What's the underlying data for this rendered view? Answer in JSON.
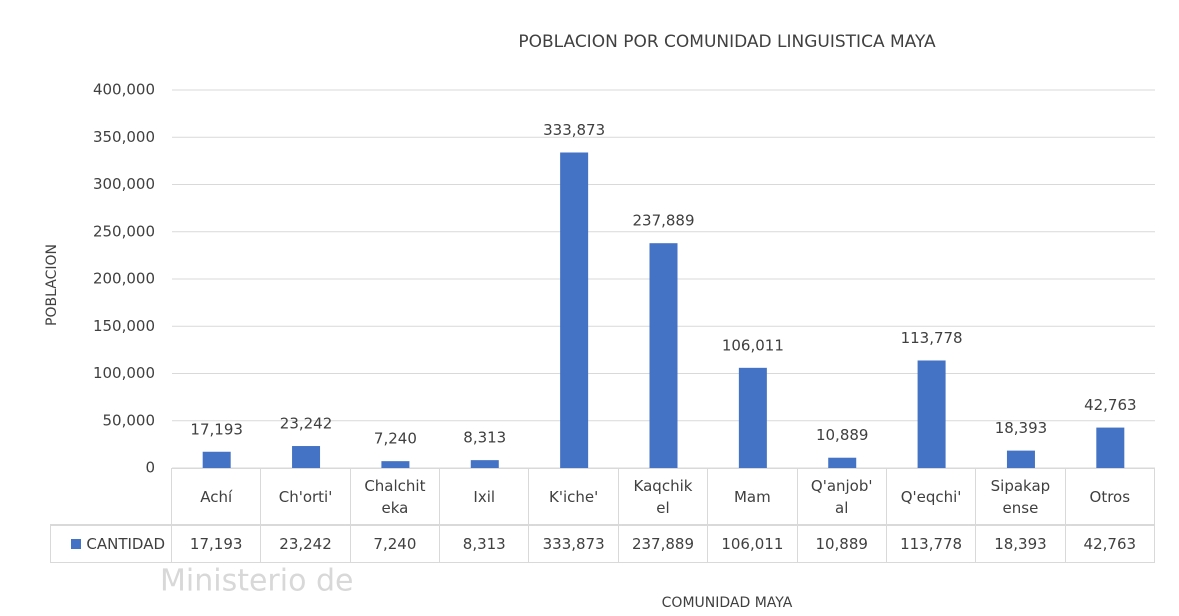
{
  "chart_data": {
    "type": "bar",
    "title": "POBLACION POR COMUNIDAD LINGUISTICA MAYA",
    "y_label": "POBLACION",
    "x_label": "COMUNIDAD MAYA",
    "watermark": "Ministerio de",
    "categories": [
      "Achí",
      "Ch'orti'",
      "Chalchiteka",
      "Ixil",
      "K'iche'",
      "Kaqchikel",
      "Mam",
      "Q'anjob'al",
      "Q'eqchi'",
      "Sipakapense",
      "Otros"
    ],
    "series": [
      {
        "name": "CANTIDAD",
        "color": "#4472c4",
        "values": [
          17193,
          23242,
          7240,
          8313,
          333873,
          237889,
          106011,
          10889,
          113778,
          18393,
          42763
        ],
        "value_labels": [
          "17,193",
          "23,242",
          "7,240",
          "8,313",
          "333,873",
          "237,889",
          "106,011",
          "10,889",
          "113,778",
          "18,393",
          "42,763"
        ]
      }
    ],
    "ylim": [
      0,
      400000
    ],
    "yticks": [
      0,
      {
        "value": 50000,
        "label": "50,000"
      },
      {
        "value": 100000,
        "label": "100,000"
      },
      {
        "value": 150000,
        "label": "150,000"
      },
      {
        "value": 200000,
        "label": "200,000"
      },
      {
        "value": 250000,
        "label": "250,000"
      },
      {
        "value": 300000,
        "label": "300,000"
      },
      {
        "value": 350000,
        "label": "350,000"
      },
      {
        "value": 400000,
        "label": "400,000"
      }
    ],
    "grid": true
  }
}
